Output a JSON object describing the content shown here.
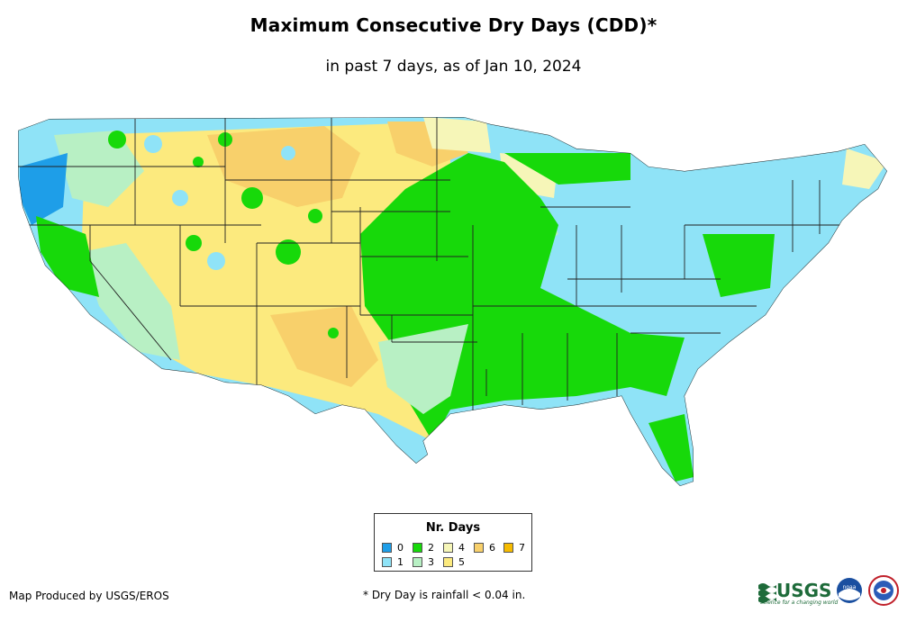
{
  "title": "Maximum Consecutive Dry Days (CDD)*",
  "subtitle": "in past 7 days, as of Jan 10, 2024",
  "legend": {
    "title": "Nr. Days",
    "items": [
      {
        "label": "0",
        "color": "#1e9ee8"
      },
      {
        "label": "1",
        "color": "#8fe3f7"
      },
      {
        "label": "2",
        "color": "#17d90a"
      },
      {
        "label": "3",
        "color": "#b8f0c4"
      },
      {
        "label": "4",
        "color": "#f6f6b8"
      },
      {
        "label": "5",
        "color": "#fcea7e"
      },
      {
        "label": "6",
        "color": "#f8d06b"
      },
      {
        "label": "7",
        "color": "#f6bb00"
      }
    ]
  },
  "footer": {
    "producer": "Map Produced by USGS/EROS",
    "note": "* Dry Day is rainfall < 0.04 in."
  },
  "logos": {
    "usgs_text": "USGS",
    "usgs_tagline": "science for a changing world",
    "noaa_text": "noaa"
  }
}
